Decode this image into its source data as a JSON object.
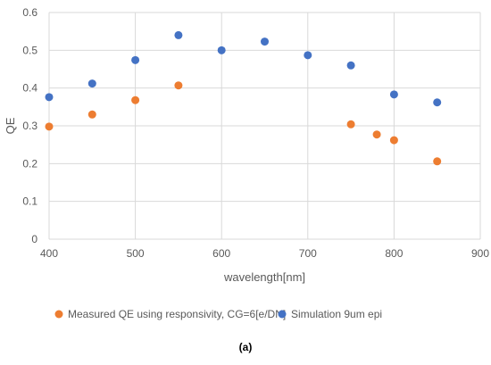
{
  "chart_data": {
    "type": "scatter",
    "xlabel": "wavelength[nm]",
    "ylabel": "QE",
    "xlim": [
      400,
      900
    ],
    "ylim": [
      0,
      0.6
    ],
    "xticks": [
      400,
      500,
      600,
      700,
      800,
      900
    ],
    "yticks": [
      0,
      0.1,
      0.2,
      0.3,
      0.4,
      0.5,
      0.6
    ],
    "xtick_labels": [
      "400",
      "500",
      "600",
      "700",
      "800",
      "900"
    ],
    "ytick_labels": [
      "0",
      "0.1",
      "0.2",
      "0.3",
      "0.4",
      "0.5",
      "0.6"
    ],
    "grid": true,
    "legend_position": "bottom",
    "series": [
      {
        "name": "Measured QE using responsivity, CG=6[e/DN]",
        "color": "#ED7D31",
        "x": [
          400,
          450,
          500,
          550,
          750,
          780,
          800,
          850
        ],
        "y": [
          0.298,
          0.33,
          0.368,
          0.407,
          0.304,
          0.277,
          0.262,
          0.206
        ]
      },
      {
        "name": "Simulation 9um epi",
        "color": "#4472C4",
        "x": [
          400,
          450,
          500,
          550,
          600,
          650,
          700,
          750,
          800,
          850
        ],
        "y": [
          0.376,
          0.412,
          0.474,
          0.54,
          0.5,
          0.523,
          0.487,
          0.46,
          0.383,
          0.362
        ]
      }
    ]
  },
  "caption": "(a)"
}
